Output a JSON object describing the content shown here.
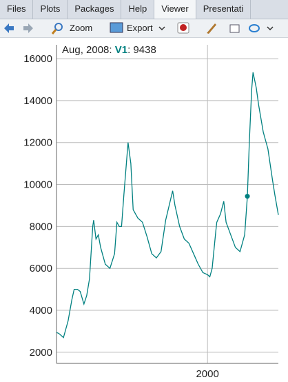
{
  "tabs": [
    "Files",
    "Plots",
    "Packages",
    "Help",
    "Viewer",
    "Presentati"
  ],
  "toolbar": [
    "Zoom",
    "Export"
  ],
  "chart_data": {
    "type": "line",
    "x": [
      1967.5,
      1968,
      1969,
      1970,
      1970.8,
      1971.3,
      1972,
      1972.6,
      1973.4,
      1974,
      1974.6,
      1975.3,
      1975.5,
      1976,
      1976.5,
      1977,
      1978,
      1979,
      1980,
      1980.5,
      1981,
      1981.5,
      1982,
      1982.9,
      1983.5,
      1984,
      1985,
      1986,
      1987,
      1988,
      1989,
      1990,
      1991,
      1992.5,
      1993,
      1994,
      1995,
      1996,
      1997,
      1998,
      1999,
      2000,
      2000.5,
      2001,
      2001.8,
      2002,
      2002.8,
      2003.5,
      2004,
      2005,
      2006,
      2007,
      2008,
      2008.583,
      2009,
      2009.5,
      2009.8,
      2010.5,
      2011,
      2012,
      2013,
      2014,
      2014.5,
      2015.25
    ],
    "series": [
      {
        "name": "V1",
        "color": "#008080",
        "values": [
          2944,
          2900,
          2700,
          3500,
          4500,
          5000,
          5000,
          4900,
          4300,
          4700,
          5500,
          8000,
          8300,
          7400,
          7600,
          7000,
          6200,
          6000,
          6700,
          8200,
          8000,
          8000,
          9500,
          12000,
          11000,
          8800,
          8400,
          8200,
          7500,
          6700,
          6500,
          6800,
          8300,
          9700,
          9000,
          8000,
          7400,
          7200,
          6700,
          6200,
          5800,
          5700,
          5600,
          6000,
          7800,
          8200,
          8600,
          9200,
          8200,
          7600,
          7000,
          6800,
          7600,
          9438,
          12000,
          14500,
          15350,
          14600,
          13800,
          12500,
          11700,
          10200,
          9500,
          8549
        ]
      }
    ],
    "xlim": [
      1967.5,
      2015.25
    ],
    "xticks": [
      2000
    ],
    "ylim": [
      1470,
      16660
    ],
    "yticks": [
      2000,
      4000,
      6000,
      8000,
      10000,
      12000,
      14000,
      16000
    ],
    "grid": true,
    "highlight": {
      "date_label": "Aug, 2008:",
      "index": 53,
      "value_label": ": 9438"
    }
  }
}
